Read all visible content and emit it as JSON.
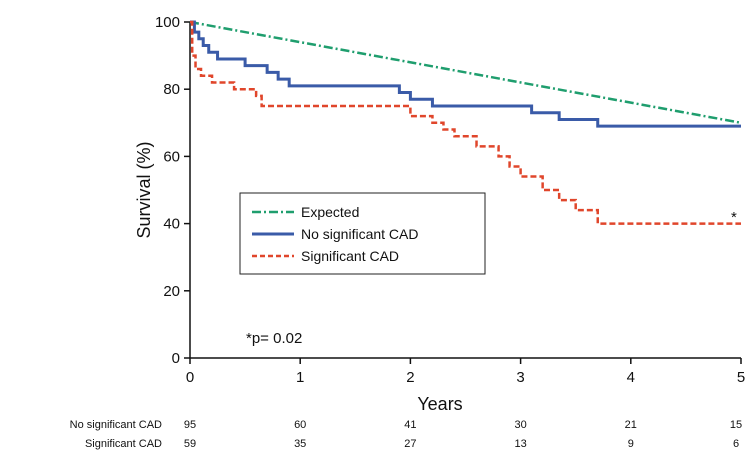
{
  "chart_data": {
    "type": "line",
    "ylabel": "Survival (%)",
    "xlabel": "Years",
    "xlim": [
      0,
      5
    ],
    "ylim": [
      0,
      100
    ],
    "xticks": [
      "0",
      "1",
      "2",
      "3",
      "4",
      "5"
    ],
    "yticks": [
      "0",
      "20",
      "40",
      "60",
      "80",
      "100"
    ],
    "grid": false,
    "legend_position": "center-left",
    "series": [
      {
        "name": "Expected",
        "color": "#1f9e6e",
        "style": "dashdot",
        "step": false,
        "points": [
          [
            0,
            100
          ],
          [
            5,
            70
          ]
        ]
      },
      {
        "name": "No significant CAD",
        "color": "#3a5ba8",
        "style": "solid",
        "step": true,
        "points": [
          [
            0,
            100
          ],
          [
            0.04,
            97
          ],
          [
            0.08,
            95
          ],
          [
            0.12,
            93
          ],
          [
            0.17,
            91
          ],
          [
            0.25,
            89
          ],
          [
            0.5,
            87
          ],
          [
            0.7,
            85
          ],
          [
            0.8,
            83
          ],
          [
            0.9,
            81
          ],
          [
            1.0,
            81
          ],
          [
            1.5,
            81
          ],
          [
            1.9,
            79
          ],
          [
            2.0,
            77
          ],
          [
            2.2,
            75
          ],
          [
            2.3,
            75
          ],
          [
            2.9,
            75
          ],
          [
            3.1,
            73
          ],
          [
            3.35,
            71
          ],
          [
            3.7,
            69
          ],
          [
            4.2,
            69
          ],
          [
            5,
            69
          ]
        ]
      },
      {
        "name": "Significant CAD",
        "color": "#e0462b",
        "style": "dashed",
        "step": true,
        "points": [
          [
            0,
            100
          ],
          [
            0.02,
            90
          ],
          [
            0.05,
            86
          ],
          [
            0.1,
            84
          ],
          [
            0.2,
            82
          ],
          [
            0.4,
            80
          ],
          [
            0.6,
            78
          ],
          [
            0.65,
            75
          ],
          [
            1.0,
            75
          ],
          [
            1.5,
            75
          ],
          [
            1.95,
            75
          ],
          [
            2.0,
            72
          ],
          [
            2.2,
            70
          ],
          [
            2.3,
            68
          ],
          [
            2.4,
            66
          ],
          [
            2.6,
            63
          ],
          [
            2.8,
            60
          ],
          [
            2.9,
            57
          ],
          [
            3.0,
            54
          ],
          [
            3.2,
            50
          ],
          [
            3.35,
            47
          ],
          [
            3.5,
            44
          ],
          [
            3.7,
            40
          ],
          [
            4.0,
            40
          ],
          [
            5,
            40
          ]
        ]
      }
    ],
    "legend": [
      "Expected",
      "No significant CAD",
      "Significant CAD"
    ],
    "annotations": {
      "pvalue": "*p= 0.02",
      "star": "*"
    },
    "risk_table": {
      "rows": [
        {
          "label": "No significant CAD",
          "values": [
            "95",
            "60",
            "41",
            "30",
            "21",
            "15"
          ]
        },
        {
          "label": "Significant CAD",
          "values": [
            "59",
            "35",
            "27",
            "13",
            "9",
            "6"
          ]
        }
      ]
    }
  }
}
